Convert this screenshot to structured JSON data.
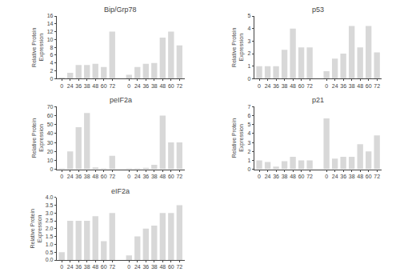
{
  "chart_data": [
    {
      "type": "bar",
      "title": "Bip/Grp78",
      "ylabel": "Relative Protein\nExpression",
      "categories": [
        "0",
        "24",
        "36",
        "38",
        "48",
        "60",
        "72",
        null,
        "0",
        "24",
        "36",
        "38",
        "48",
        "60",
        "72"
      ],
      "values": [
        0.3,
        1.5,
        3.5,
        3.5,
        3.8,
        3.0,
        12.0,
        null,
        1.0,
        3.0,
        3.8,
        4.0,
        10.5,
        12.0,
        8.5
      ],
      "color": "#d8d8d8",
      "ylim": [
        0,
        16
      ],
      "yticks": [
        0,
        2,
        4,
        6,
        8,
        10,
        12,
        14,
        16
      ],
      "grid": false
    },
    {
      "type": "bar",
      "title": "peIF2a",
      "ylabel": "Relative Protein\nExpression",
      "categories": [
        "0",
        "24",
        "36",
        "38",
        "48",
        "60",
        "72",
        null,
        "0",
        "24",
        "36",
        "38",
        "48",
        "60",
        "72"
      ],
      "values": [
        1.0,
        20.0,
        47.0,
        63.0,
        2.0,
        1.0,
        15.0,
        null,
        1.0,
        1.0,
        1.5,
        5.0,
        60.0,
        30.0,
        30.0
      ],
      "color": "#d8d8d8",
      "ylim": [
        0,
        70
      ],
      "yticks": [
        0,
        10,
        20,
        30,
        40,
        50,
        60,
        70
      ],
      "grid": false
    },
    {
      "type": "bar",
      "title": "eIF2a",
      "ylabel": "Relative Protein\nExpression",
      "categories": [
        "0",
        "24",
        "36",
        "38",
        "48",
        "60",
        "72",
        null,
        "0",
        "24",
        "36",
        "38",
        "48",
        "60",
        "72"
      ],
      "values": [
        0.5,
        2.5,
        2.5,
        2.5,
        2.8,
        1.2,
        3.0,
        null,
        0.3,
        1.5,
        2.0,
        2.2,
        3.0,
        3.0,
        3.5
      ],
      "color": "#d8d8d8",
      "ylim": [
        0,
        4.0
      ],
      "yticks": [
        {
          "value": 0,
          "label": "0.0"
        },
        0.5,
        {
          "value": 1,
          "label": "1.0"
        },
        1.5,
        {
          "value": 2,
          "label": "2.0"
        },
        2.5,
        {
          "value": 3,
          "label": "3.0"
        },
        3.5,
        {
          "value": 4,
          "label": "4.0"
        }
      ],
      "grid": false
    },
    {
      "type": "bar",
      "title": "p53",
      "ylabel": "Relative Protein\nExpression",
      "categories": [
        "0",
        "24",
        "36",
        "38",
        "48",
        "60",
        "72",
        null,
        "0",
        "24",
        "36",
        "38",
        "48",
        "60",
        "72"
      ],
      "values": [
        1.0,
        1.0,
        1.0,
        2.3,
        4.0,
        2.5,
        2.5,
        null,
        0.6,
        1.6,
        2.0,
        4.2,
        2.5,
        4.2,
        2.1
      ],
      "color": "#d8d8d8",
      "ylim": [
        0,
        5
      ],
      "yticks": [
        0,
        1,
        2,
        3,
        4,
        5
      ],
      "grid": false
    },
    {
      "type": "bar",
      "title": "p21",
      "ylabel": "Relative Protein\nExpression",
      "categories": [
        "0",
        "24",
        "36",
        "38",
        "48",
        "60",
        "72",
        null,
        "0",
        "24",
        "36",
        "38",
        "48",
        "60",
        "72"
      ],
      "values": [
        1.0,
        0.8,
        0.3,
        0.9,
        1.4,
        1.0,
        1.0,
        null,
        5.7,
        1.2,
        1.4,
        1.4,
        2.8,
        2.0,
        3.8
      ],
      "color": "#d8d8d8",
      "ylim": [
        0,
        7
      ],
      "yticks": [
        0,
        1,
        2,
        3,
        4,
        5,
        6,
        7
      ],
      "grid": false
    }
  ]
}
